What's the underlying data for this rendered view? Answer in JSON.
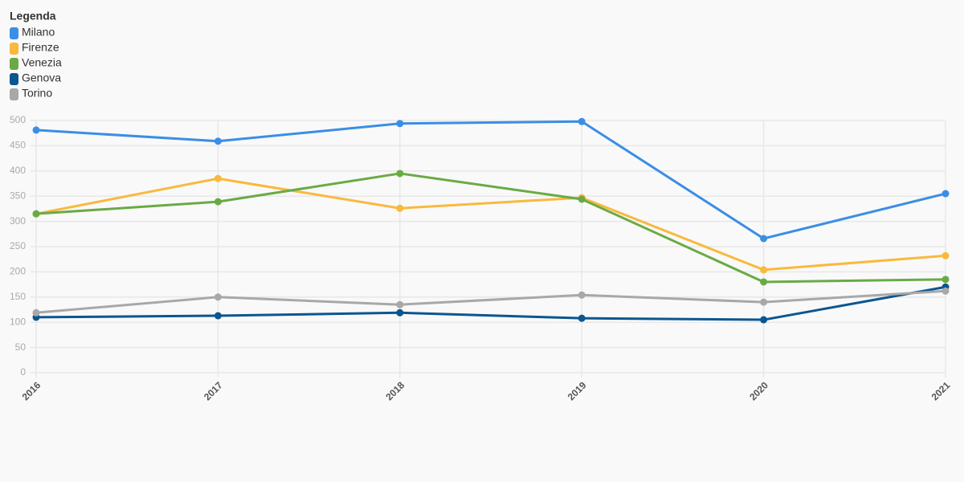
{
  "chart_data": {
    "type": "line",
    "legend_title": "Legenda",
    "legend": "top-left",
    "grid": true,
    "categories": [
      "2016",
      "2017",
      "2018",
      "2019",
      "2020",
      "2021"
    ],
    "series": [
      {
        "name": "Milano",
        "color": "#3a8ee6",
        "values": [
          481,
          459,
          494,
          498,
          266,
          355
        ]
      },
      {
        "name": "Firenze",
        "color": "#f9b93d",
        "values": [
          315,
          385,
          326,
          347,
          204,
          232
        ]
      },
      {
        "name": "Venezia",
        "color": "#6aaa45",
        "values": [
          315,
          339,
          395,
          344,
          180,
          185
        ]
      },
      {
        "name": "Genova",
        "color": "#0b568f",
        "values": [
          110,
          113,
          119,
          108,
          105,
          170
        ]
      },
      {
        "name": "Torino",
        "color": "#a8a8a8",
        "values": [
          119,
          150,
          135,
          154,
          140,
          162
        ]
      }
    ],
    "ylim": [
      0,
      500
    ],
    "yticks": [
      0,
      50,
      100,
      150,
      200,
      250,
      300,
      350,
      400,
      450,
      500
    ]
  }
}
